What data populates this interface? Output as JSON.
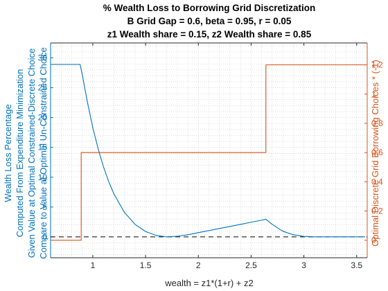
{
  "chart_data": {
    "type": "line",
    "title": [
      "% Wealth Loss to Borrowing Grid Discretization",
      "B Grid Gap = 0.6, beta = 0.95, r = 0.05",
      "z1 Wealth share = 0.15, z2 Wealth share = 0.85"
    ],
    "xlabel": "wealth = z1*(1+r) + z2",
    "ylabel_left": [
      "Wealth Loss Percentage",
      "Computed From Expenditure Minimization",
      "Given Value at Optimal Constrained-Discrete Choice",
      "Compare to Value at Optimal Un-Constrained Choice"
    ],
    "ylabel_right": "Optimal Discrete Grid Borrowing Choices * (-1)",
    "xlim": [
      0.6,
      3.6
    ],
    "ylim_left": [
      -3.5,
      32.5
    ],
    "ylim_right": [
      -0.12,
      1.35
    ],
    "xticks": [
      1,
      1.5,
      2,
      2.5,
      3,
      3.5
    ],
    "yticks_left": [
      0,
      5,
      10,
      15,
      20,
      25,
      30
    ],
    "yticks_right": [
      0,
      0.2,
      0.4,
      0.6,
      0.8,
      1,
      1.2
    ],
    "grid": "minor dotted",
    "colors": {
      "left": "#0072BD",
      "right": "#D95319",
      "zero_line": "#000000"
    },
    "series": [
      {
        "axis": "left",
        "x": [
          0.6,
          0.8,
          0.88,
          0.9,
          0.95,
          1.0,
          1.05,
          1.1,
          1.15,
          1.2,
          1.3,
          1.4,
          1.5,
          1.6,
          1.7,
          1.8,
          1.9,
          2.0,
          2.1,
          2.2,
          2.3,
          2.4,
          2.5,
          2.6,
          2.64,
          2.7,
          2.8,
          2.9,
          3.0,
          3.1,
          3.2,
          3.3,
          3.4,
          3.5,
          3.58
        ],
        "y": [
          28.9,
          28.9,
          28.9,
          27.2,
          22.5,
          18.3,
          14.8,
          11.8,
          9.3,
          7.2,
          4.1,
          2.1,
          0.9,
          0.25,
          0.0,
          0.1,
          0.35,
          0.7,
          1.05,
          1.4,
          1.75,
          2.1,
          2.45,
          2.8,
          2.95,
          2.1,
          0.95,
          0.35,
          0.08,
          0.0,
          0.0,
          0.0,
          0.0,
          0.0,
          0.0
        ]
      },
      {
        "axis": "right",
        "x": [
          0.6,
          0.89,
          0.89,
          2.64,
          2.64,
          3.58
        ],
        "y": [
          0,
          0,
          0.6,
          0.6,
          1.2,
          1.2
        ]
      }
    ],
    "reference_line": {
      "axis": "left",
      "y": 0,
      "style": "dashed"
    }
  }
}
